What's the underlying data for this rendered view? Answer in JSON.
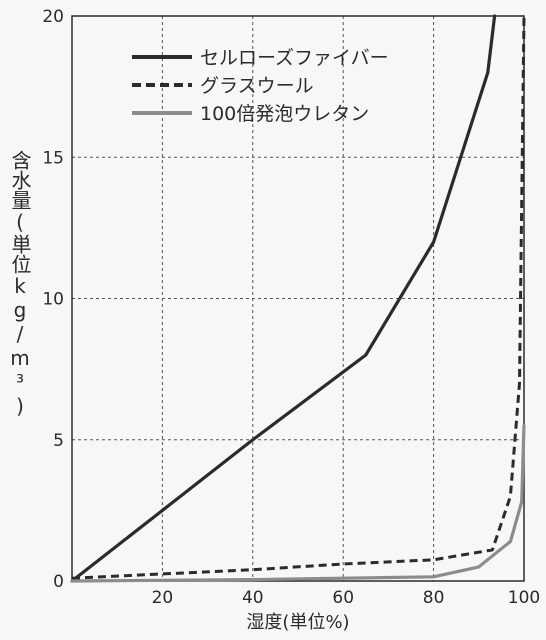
{
  "chart_data": {
    "type": "line",
    "xlabel": "湿度(単位%)",
    "ylabel": "含水量(単位kg/m³)",
    "xlim": [
      0,
      100
    ],
    "ylim": [
      0,
      20
    ],
    "x_ticks": [
      "20",
      "40",
      "60",
      "80",
      "100"
    ],
    "y_ticks": [
      "0",
      "5",
      "10",
      "15",
      "20"
    ],
    "grid": true,
    "legend_position": "top-left",
    "series": [
      {
        "name": "セルローズファイバー",
        "style": "solid",
        "color": "#2b2b2b",
        "points": [
          [
            0,
            0
          ],
          [
            40,
            5
          ],
          [
            65,
            8
          ],
          [
            80,
            12
          ],
          [
            92,
            18
          ],
          [
            93.5,
            20
          ]
        ]
      },
      {
        "name": "グラスウール",
        "style": "dashed",
        "color": "#2b2b2b",
        "points": [
          [
            0,
            0.1
          ],
          [
            40,
            0.4
          ],
          [
            60,
            0.6
          ],
          [
            80,
            0.75
          ],
          [
            93,
            1.1
          ],
          [
            97,
            3
          ],
          [
            99,
            7
          ],
          [
            100,
            20
          ]
        ]
      },
      {
        "name": "100倍発泡ウレタン",
        "style": "solid",
        "color": "#8c8c8c",
        "points": [
          [
            0,
            0
          ],
          [
            40,
            0.05
          ],
          [
            80,
            0.15
          ],
          [
            90,
            0.5
          ],
          [
            97,
            1.4
          ],
          [
            99.5,
            2.8
          ],
          [
            100,
            5.5
          ]
        ]
      }
    ]
  }
}
